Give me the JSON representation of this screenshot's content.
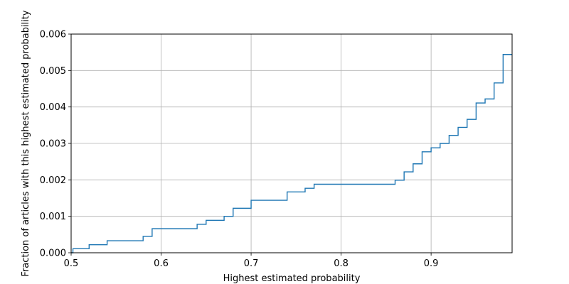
{
  "chart_data": {
    "type": "line",
    "drawstyle": "steps-post",
    "xlabel": "Highest estimated probability",
    "ylabel": "Fraction of articles with this highest estimated probability",
    "xlim": [
      0.5,
      0.99
    ],
    "ylim": [
      0.0,
      0.006
    ],
    "xticks": [
      0.5,
      0.6,
      0.7,
      0.8,
      0.9
    ],
    "xtick_labels": [
      "0.5",
      "0.6",
      "0.7",
      "0.8",
      "0.9"
    ],
    "yticks": [
      0.0,
      0.001,
      0.002,
      0.003,
      0.004,
      0.005,
      0.006
    ],
    "ytick_labels": [
      "0.000",
      "0.001",
      "0.002",
      "0.003",
      "0.004",
      "0.005",
      "0.006"
    ],
    "grid": true,
    "line_color": "#1f77b4",
    "series": [
      {
        "x": [
          0.5,
          0.502,
          0.52,
          0.54,
          0.58,
          0.59,
          0.64,
          0.65,
          0.67,
          0.68,
          0.7,
          0.74,
          0.76,
          0.77,
          0.86,
          0.87,
          0.88,
          0.89,
          0.9,
          0.91,
          0.92,
          0.93,
          0.94,
          0.95,
          0.96,
          0.97,
          0.98,
          0.99
        ],
        "y": [
          0.0,
          0.00011,
          0.00022,
          0.00033,
          0.00045,
          0.00066,
          0.00078,
          0.00089,
          0.001,
          0.00122,
          0.00144,
          0.00167,
          0.00177,
          0.00188,
          0.00199,
          0.00222,
          0.00244,
          0.00277,
          0.00288,
          0.003,
          0.00322,
          0.00344,
          0.00366,
          0.00411,
          0.00422,
          0.00466,
          0.00544,
          0.00544
        ]
      }
    ]
  }
}
